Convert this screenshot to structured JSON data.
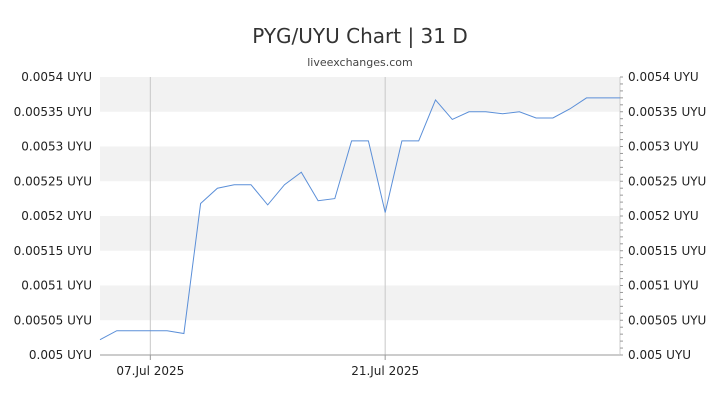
{
  "header": {
    "title": "PYG/UYU Chart | 31 D",
    "subtitle": "liveexchanges.com"
  },
  "chart_data": {
    "type": "line",
    "title": "PYG/UYU Chart | 31 D",
    "xlabel": "",
    "ylabel": "",
    "ylim": [
      0.005,
      0.0054
    ],
    "y_ticks": [
      "0.005 UYU",
      "0.00505 UYU",
      "0.0051 UYU",
      "0.00515 UYU",
      "0.0052 UYU",
      "0.00525 UYU",
      "0.0053 UYU",
      "0.00535 UYU",
      "0.0054 UYU"
    ],
    "y_tick_values": [
      0.005,
      0.00505,
      0.0051,
      0.00515,
      0.0052,
      0.00525,
      0.0053,
      0.00535,
      0.0054
    ],
    "x_ticks": [
      {
        "label": "07.Jul 2025",
        "index": 3
      },
      {
        "label": "21.Jul 2025",
        "index": 17
      }
    ],
    "grid": "horizontal bands",
    "legend": "none",
    "line_color": "#5b8fd8",
    "series": [
      {
        "values": [
          0.005022,
          0.005035,
          0.005035,
          0.005035,
          0.005035,
          0.005031,
          0.005218,
          0.00524,
          0.005245,
          0.005245,
          0.005216,
          0.005245,
          0.005263,
          0.005222,
          0.005225,
          0.005308,
          0.005308,
          0.005205,
          0.005308,
          0.005308,
          0.005367,
          0.005339,
          0.00535,
          0.00535,
          0.005347,
          0.00535,
          0.005341,
          0.005341,
          0.005354,
          0.00537,
          0.00537,
          0.00537
        ]
      }
    ]
  }
}
